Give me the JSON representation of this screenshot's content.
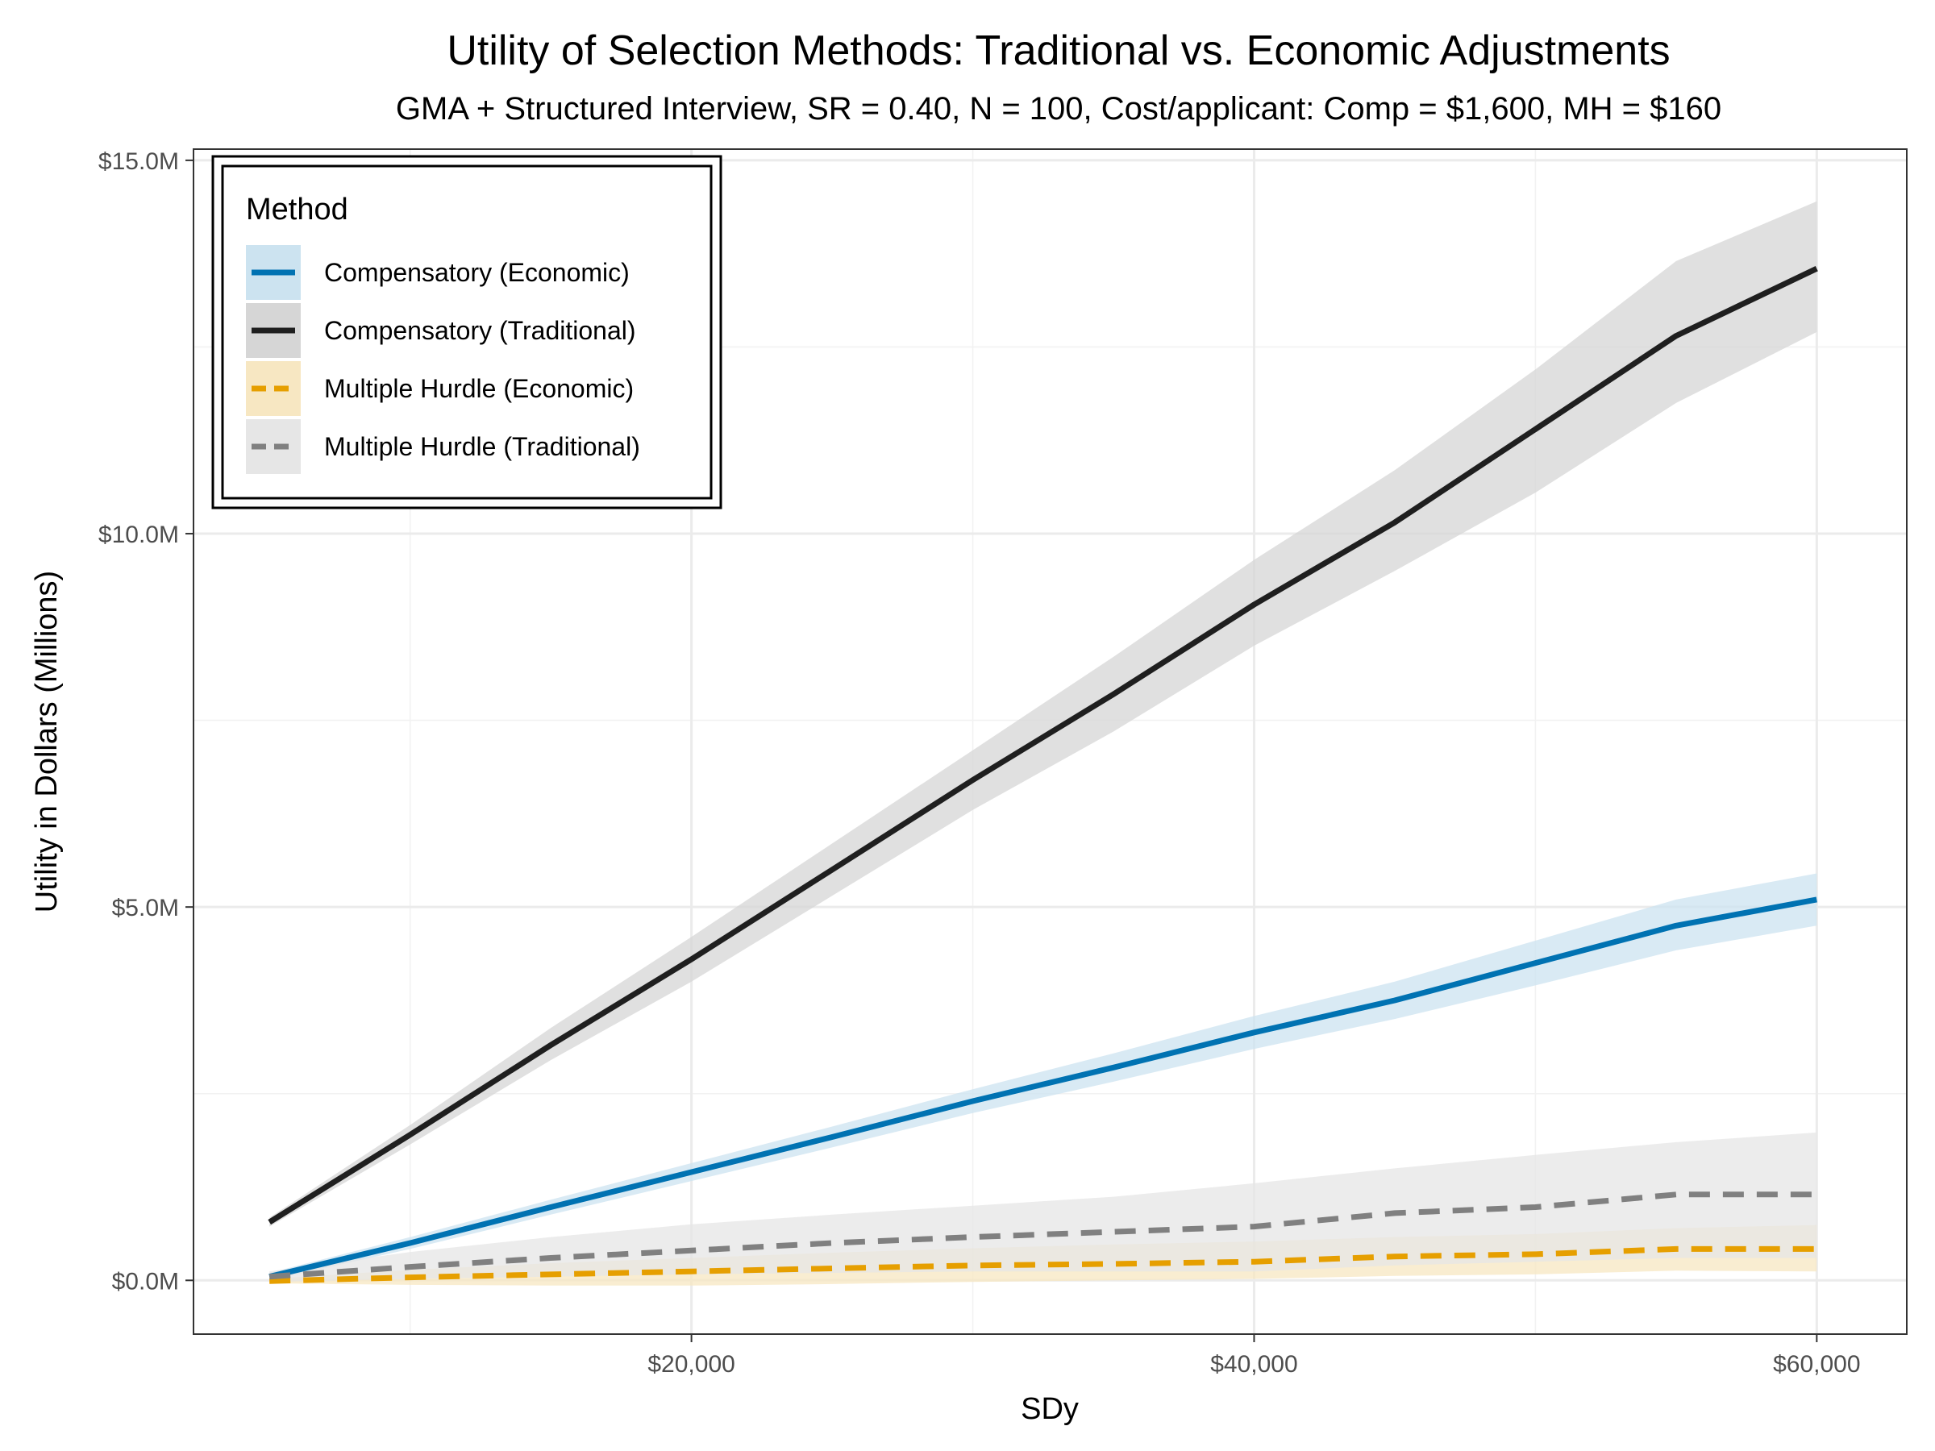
{
  "chart_data": {
    "type": "line",
    "title": "Utility of Selection Methods: Traditional vs. Economic Adjustments",
    "subtitle": "GMA + Structured Interview, SR = 0.40, N = 100, Cost/applicant: Comp = $1,600, MH = $160",
    "xlabel": "SDy",
    "ylabel": "Utility in Dollars (Millions)",
    "xlim": [
      2300,
      63200
    ],
    "ylim": [
      -0.72,
      15.15
    ],
    "x_ticks": [
      20000,
      40000,
      60000
    ],
    "x_tick_labels": [
      "$20,000",
      "$40,000",
      "$60,000"
    ],
    "y_ticks": [
      0,
      5,
      10,
      15
    ],
    "y_tick_labels": [
      "$0.0M",
      "$5.0M",
      "$10.0M",
      "$15.0M"
    ],
    "grid": true,
    "legend": {
      "title": "Method",
      "position": "top-left"
    },
    "x": [
      5000,
      10000,
      15000,
      20000,
      25000,
      30000,
      35000,
      40000,
      45000,
      50000,
      55000,
      60000
    ],
    "series": [
      {
        "name": "Compensatory (Economic)",
        "color": "#0072b2",
        "band_color": "#cce3f0",
        "linestyle": "solid",
        "values": [
          0.05,
          0.5,
          0.98,
          1.45,
          1.92,
          2.4,
          2.85,
          3.32,
          3.75,
          4.25,
          4.75,
          5.1
        ],
        "lower": [
          0.0,
          0.42,
          0.88,
          1.33,
          1.78,
          2.24,
          2.66,
          3.1,
          3.5,
          3.95,
          4.42,
          4.75
        ],
        "upper": [
          0.1,
          0.58,
          1.08,
          1.57,
          2.06,
          2.56,
          3.04,
          3.54,
          4.0,
          4.55,
          5.1,
          5.45
        ]
      },
      {
        "name": "Compensatory (Traditional)",
        "color": "#1f1f1f",
        "band_color": "#d6d6d6",
        "linestyle": "solid",
        "values": [
          0.78,
          1.95,
          3.15,
          4.3,
          5.5,
          6.7,
          7.85,
          9.05,
          10.15,
          11.4,
          12.65,
          13.55
        ],
        "lower": [
          0.72,
          1.82,
          2.95,
          4.0,
          5.15,
          6.3,
          7.35,
          8.5,
          9.5,
          10.55,
          11.75,
          12.7
        ],
        "upper": [
          0.84,
          2.08,
          3.38,
          4.6,
          5.85,
          7.1,
          8.35,
          9.65,
          10.85,
          12.2,
          13.65,
          14.45
        ]
      },
      {
        "name": "Multiple Hurdle (Economic)",
        "color": "#e69f00",
        "band_color": "#f7e7c2",
        "linestyle": "dashed",
        "values": [
          -0.01,
          0.04,
          0.08,
          0.12,
          0.16,
          0.2,
          0.22,
          0.25,
          0.32,
          0.35,
          0.42,
          0.42
        ],
        "lower": [
          -0.04,
          -0.06,
          -0.07,
          -0.07,
          -0.05,
          -0.02,
          0.0,
          0.02,
          0.06,
          0.08,
          0.13,
          0.12
        ],
        "upper": [
          0.02,
          0.14,
          0.23,
          0.3,
          0.37,
          0.43,
          0.48,
          0.52,
          0.58,
          0.62,
          0.7,
          0.74
        ]
      },
      {
        "name": "Multiple Hurdle (Traditional)",
        "color": "#808080",
        "band_color": "#e6e6e6",
        "linestyle": "dashed",
        "values": [
          0.05,
          0.18,
          0.3,
          0.4,
          0.5,
          0.58,
          0.65,
          0.72,
          0.9,
          0.98,
          1.15,
          1.15
        ],
        "lower": [
          -0.02,
          0.02,
          0.05,
          0.08,
          0.1,
          0.12,
          0.12,
          0.12,
          0.2,
          0.25,
          0.3,
          0.3
        ],
        "upper": [
          0.12,
          0.38,
          0.58,
          0.75,
          0.88,
          1.0,
          1.12,
          1.3,
          1.5,
          1.68,
          1.85,
          1.98
        ]
      }
    ]
  }
}
